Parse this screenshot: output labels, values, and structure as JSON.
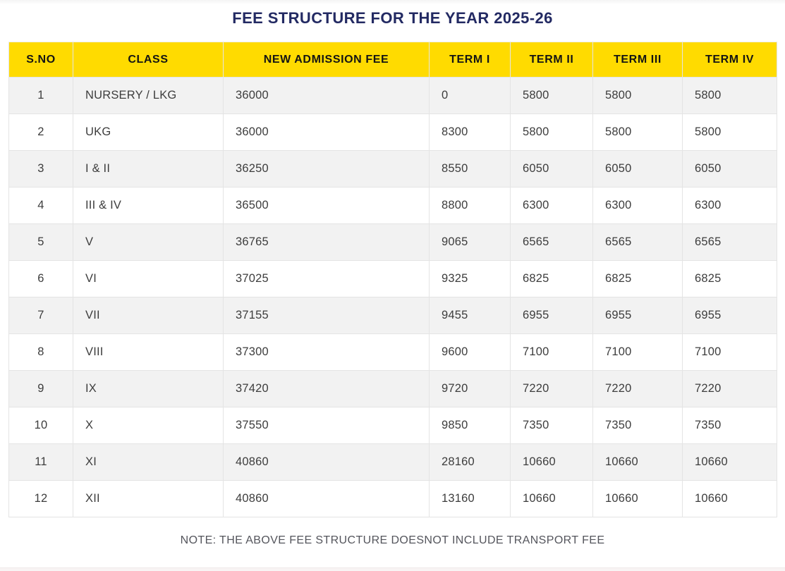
{
  "page": {
    "title": "FEE STRUCTURE FOR THE YEAR 2025-26",
    "note": "NOTE: THE ABOVE FEE STRUCTURE DOESNOT INCLUDE TRANSPORT FEE"
  },
  "colors": {
    "header_bg": "#ffdb00",
    "title_text": "#232a63",
    "row_alt_bg": "#f2f2f2",
    "body_text": "#3d3d3d",
    "note_text": "#54555c",
    "grid_border": "#e4e4e4"
  },
  "table": {
    "columns": [
      "S.NO",
      "CLASS",
      "NEW ADMISSION FEE",
      "TERM I",
      "TERM II",
      "TERM III",
      "TERM IV"
    ],
    "rows": [
      [
        "1",
        "NURSERY / LKG",
        "36000",
        "0",
        "5800",
        "5800",
        "5800"
      ],
      [
        "2",
        "UKG",
        "36000",
        "8300",
        "5800",
        "5800",
        "5800"
      ],
      [
        "3",
        "I & II",
        "36250",
        "8550",
        "6050",
        "6050",
        "6050"
      ],
      [
        "4",
        "III & IV",
        "36500",
        "8800",
        "6300",
        "6300",
        "6300"
      ],
      [
        "5",
        "V",
        "36765",
        "9065",
        "6565",
        "6565",
        "6565"
      ],
      [
        "6",
        "VI",
        "37025",
        "9325",
        "6825",
        "6825",
        "6825"
      ],
      [
        "7",
        "VII",
        "37155",
        "9455",
        "6955",
        "6955",
        "6955"
      ],
      [
        "8",
        "VIII",
        "37300",
        "9600",
        "7100",
        "7100",
        "7100"
      ],
      [
        "9",
        "IX",
        "37420",
        "9720",
        "7220",
        "7220",
        "7220"
      ],
      [
        "10",
        "X",
        "37550",
        "9850",
        "7350",
        "7350",
        "7350"
      ],
      [
        "11",
        "XI",
        "40860",
        "28160",
        "10660",
        "10660",
        "10660"
      ],
      [
        "12",
        "XII",
        "40860",
        "13160",
        "10660",
        "10660",
        "10660"
      ]
    ]
  }
}
